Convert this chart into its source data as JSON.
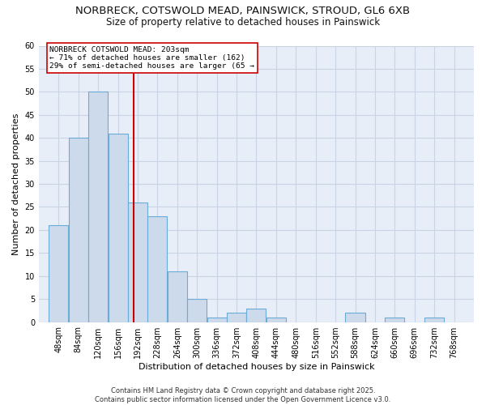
{
  "title_line1": "NORBRECK, COTSWOLD MEAD, PAINSWICK, STROUD, GL6 6XB",
  "title_line2": "Size of property relative to detached houses in Painswick",
  "xlabel": "Distribution of detached houses by size in Painswick",
  "ylabel": "Number of detached properties",
  "bin_starts": [
    48,
    84,
    120,
    156,
    192,
    228,
    264,
    300,
    336,
    372,
    408,
    444,
    480,
    516,
    552,
    588,
    624,
    660,
    696,
    732,
    768
  ],
  "bin_width": 36,
  "counts": [
    21,
    40,
    50,
    41,
    26,
    23,
    11,
    5,
    1,
    2,
    3,
    1,
    0,
    0,
    0,
    2,
    0,
    1,
    0,
    1,
    0
  ],
  "bar_facecolor": "#cddaeb",
  "bar_edgecolor": "#6aacd5",
  "property_size": 203,
  "vline_color": "#cc0000",
  "annotation_text": "NORBRECK COTSWOLD MEAD: 203sqm\n← 71% of detached houses are smaller (162)\n29% of semi-detached houses are larger (65 →",
  "annotation_box_edgecolor": "#cc0000",
  "annotation_box_facecolor": "#ffffff",
  "ylim": [
    0,
    60
  ],
  "yticks": [
    0,
    5,
    10,
    15,
    20,
    25,
    30,
    35,
    40,
    45,
    50,
    55,
    60
  ],
  "grid_color": "#c8d4e4",
  "background_color": "#e8eef8",
  "footer_text": "Contains HM Land Registry data © Crown copyright and database right 2025.\nContains public sector information licensed under the Open Government Licence v3.0.",
  "title_fontsize": 9.5,
  "subtitle_fontsize": 8.5,
  "axis_label_fontsize": 8,
  "tick_fontsize": 7,
  "footer_fontsize": 6
}
